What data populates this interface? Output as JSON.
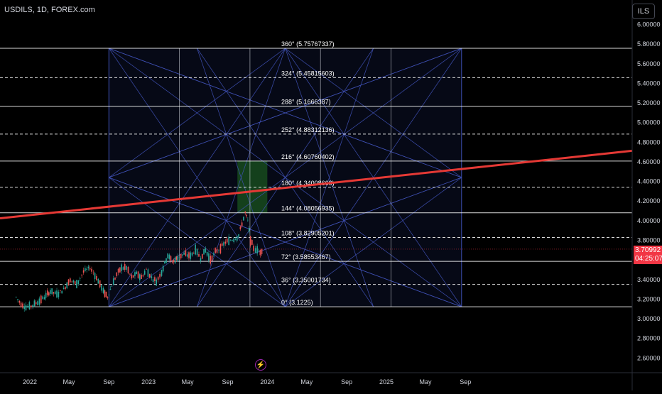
{
  "symbol": "USDILS, 1D, FOREX.com",
  "currency": "ILS",
  "current_price": "3.70992",
  "countdown": "04:25:07",
  "colors": {
    "background": "#000000",
    "trend_line": "#e53935",
    "grid_line": "#3f51b5",
    "level_line": "#ffffff",
    "highlight_box": "#1b5e20",
    "candle_up": "#26a69a",
    "candle_down": "#ef5350",
    "price_badge": "#f23645"
  },
  "chart_data": {
    "type": "candlestick",
    "ylim": [
      2.45,
      6.25
    ],
    "y_ticks": [
      "6.00000",
      "5.80000",
      "5.60000",
      "5.40000",
      "5.20000",
      "5.00000",
      "4.80000",
      "4.60000",
      "4.40000",
      "4.20000",
      "4.00000",
      "3.80000",
      "3.40000",
      "3.20000",
      "3.00000",
      "2.80000",
      "2.60000"
    ],
    "x_ticks": [
      "2022",
      "May",
      "Sep",
      "2023",
      "May",
      "Sep",
      "2024",
      "May",
      "Sep",
      "2025",
      "May",
      "Sep"
    ],
    "gann_levels": [
      {
        "label": "360° (5.75767337)",
        "value": 5.75767337,
        "style": "solid"
      },
      {
        "label": "324° (5.45815603)",
        "value": 5.45815603,
        "style": "dashed"
      },
      {
        "label": "288° (5.1666387)",
        "value": 5.1666387,
        "style": "solid"
      },
      {
        "label": "252° (4.88312136)",
        "value": 4.88312136,
        "style": "dashed"
      },
      {
        "label": "216° (4.60760402)",
        "value": 4.60760402,
        "style": "solid"
      },
      {
        "label": "180° (4.34008669)",
        "value": 4.34008669,
        "style": "dashed"
      },
      {
        "label": "144° (4.08056935)",
        "value": 4.08056935,
        "style": "solid"
      },
      {
        "label": "108° (3.82905201)",
        "value": 3.82905201,
        "style": "dashed"
      },
      {
        "label": "72° (3.58553467)",
        "value": 3.58553467,
        "style": "solid"
      },
      {
        "label": "36° (3.35001734)",
        "value": 3.35001734,
        "style": "dashed"
      },
      {
        "label": "0° (3.1225)",
        "value": 3.1225,
        "style": "solid"
      }
    ],
    "price_path": [
      [
        "2021-11-20",
        3.22
      ],
      [
        "2021-12-05",
        3.15
      ],
      [
        "2021-12-20",
        3.12
      ],
      [
        "2022-01-05",
        3.13
      ],
      [
        "2022-01-25",
        3.17
      ],
      [
        "2022-02-15",
        3.22
      ],
      [
        "2022-03-05",
        3.28
      ],
      [
        "2022-03-25",
        3.25
      ],
      [
        "2022-04-15",
        3.3
      ],
      [
        "2022-05-05",
        3.4
      ],
      [
        "2022-05-25",
        3.35
      ],
      [
        "2022-06-15",
        3.48
      ],
      [
        "2022-07-05",
        3.52
      ],
      [
        "2022-07-25",
        3.42
      ],
      [
        "2022-08-15",
        3.28
      ],
      [
        "2022-08-28",
        3.22
      ],
      [
        "2022-09-10",
        3.34
      ],
      [
        "2022-09-25",
        3.45
      ],
      [
        "2022-10-10",
        3.52
      ],
      [
        "2022-10-25",
        3.52
      ],
      [
        "2022-11-10",
        3.42
      ],
      [
        "2022-11-25",
        3.46
      ],
      [
        "2022-12-10",
        3.42
      ],
      [
        "2022-12-25",
        3.5
      ],
      [
        "2023-01-10",
        3.42
      ],
      [
        "2023-01-25",
        3.38
      ],
      [
        "2023-02-10",
        3.48
      ],
      [
        "2023-03-01",
        3.65
      ],
      [
        "2023-03-15",
        3.58
      ],
      [
        "2023-04-01",
        3.62
      ],
      [
        "2023-04-20",
        3.66
      ],
      [
        "2023-05-10",
        3.64
      ],
      [
        "2023-05-25",
        3.7
      ],
      [
        "2023-06-10",
        3.62
      ],
      [
        "2023-06-25",
        3.7
      ],
      [
        "2023-07-10",
        3.6
      ],
      [
        "2023-07-25",
        3.68
      ],
      [
        "2023-08-10",
        3.72
      ],
      [
        "2023-08-25",
        3.78
      ],
      [
        "2023-09-10",
        3.8
      ],
      [
        "2023-09-25",
        3.82
      ],
      [
        "2023-10-05",
        3.85
      ],
      [
        "2023-10-15",
        3.97
      ],
      [
        "2023-10-25",
        4.08
      ],
      [
        "2023-11-02",
        4.0
      ],
      [
        "2023-11-10",
        3.8
      ],
      [
        "2023-11-20",
        3.72
      ],
      [
        "2023-12-01",
        3.7
      ],
      [
        "2023-12-10",
        3.68
      ],
      [
        "2023-12-20",
        3.71
      ]
    ],
    "trend_line": {
      "start": [
        "2021-11-15",
        4.04
      ],
      "end": [
        "2025-12-20",
        4.57
      ]
    },
    "gann_box": {
      "start": "2022-09-01",
      "end": "2025-08-20",
      "low": 3.1225,
      "high": 5.75767337
    },
    "highlight_box": {
      "start": "2023-10-01",
      "end": "2024-01-01",
      "low": 4.08056935,
      "high": 4.60760402
    }
  }
}
